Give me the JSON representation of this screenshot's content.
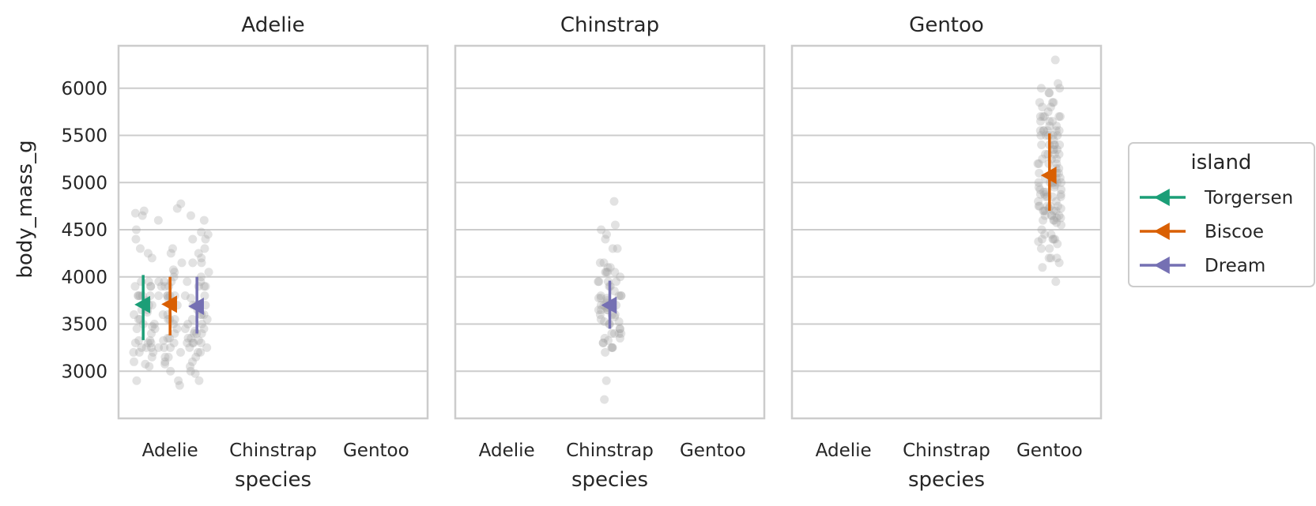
{
  "chart_data": {
    "type": "scatter",
    "ylabel": "body_mass_g",
    "xlabel": "species",
    "categories": [
      "Adelie",
      "Chinstrap",
      "Gentoo"
    ],
    "ylim": [
      2500,
      6450
    ],
    "yticks": [
      3000,
      3500,
      4000,
      4500,
      5000,
      5500,
      6000
    ],
    "grid": true,
    "legend": {
      "title": "island",
      "placement": "right",
      "entries": [
        "Torgersen",
        "Biscoe",
        "Dream"
      ]
    },
    "colors": {
      "Torgersen": "#1b9e77",
      "Biscoe": "#d95f02",
      "Dream": "#7570b3",
      "points": "#a0a0a0"
    },
    "panels": [
      {
        "title": "Adelie",
        "summary": [
          {
            "island": "Torgersen",
            "category": "Adelie",
            "mean": 3706,
            "low": 3330,
            "high": 4020
          },
          {
            "island": "Biscoe",
            "category": "Adelie",
            "mean": 3710,
            "low": 3380,
            "high": 4000
          },
          {
            "island": "Dream",
            "category": "Adelie",
            "mean": 3688,
            "low": 3400,
            "high": 4000
          }
        ],
        "points": [
          {
            "island": "Torgersen",
            "category": "Adelie",
            "values": [
              3750,
              3800,
              3250,
              3450,
              3650,
              3625,
              4675,
              3475,
              4250,
              3300,
              3700,
              3200,
              3800,
              4400,
              3700,
              3450,
              4500,
              3325,
              4200,
              3400,
              3600,
              3800,
              3950,
              3800,
              3800,
              3550,
              3200,
              3150,
              3950,
              3250,
              3900,
              3300,
              3900,
              3325,
              4300,
              3500,
              3500,
              4650,
              3050,
              2900,
              3650,
              3700,
              3900,
              3550,
              4700,
              3250,
              3300,
              3100,
              3075,
              3200
            ]
          },
          {
            "island": "Biscoe",
            "category": "Adelie",
            "values": [
              3400,
              3600,
              3800,
              3950,
              3800,
              3800,
              3550,
              3200,
              3150,
              3950,
              3250,
              3900,
              3300,
              4600,
              3100,
              3900,
              3775,
              3325,
              4725,
              3350,
              4250,
              2900,
              3700,
              3550,
              3800,
              3950,
              3900,
              3250,
              4000,
              3150,
              3550,
              4775,
              3600,
              3000,
              2850,
              4300,
              3250,
              4075,
              3500,
              3350,
              3700,
              4050,
              3075,
              3450,
              4150,
              3800
            ]
          },
          {
            "island": "Dream",
            "category": "Adelie",
            "values": [
              3250,
              3900,
              3300,
              3900,
              3325,
              4150,
              3950,
              3550,
              3300,
              4650,
              3150,
              3900,
              3100,
              4400,
              3000,
              4600,
              3425,
              2975,
              3450,
              4150,
              3500,
              4300,
              3450,
              4050,
              2900,
              3700,
              3550,
              3800,
              3350,
              3650,
              3200,
              4200,
              3600,
              3400,
              3950,
              3250,
              4475,
              3350,
              4250,
              3050,
              4000,
              3700,
              3300,
              3600,
              3300,
              3400,
              3775,
              3700,
              3500,
              3200,
              4450,
              3400,
              3700,
              3800,
              3600,
              4400
            ]
          }
        ]
      },
      {
        "title": "Chinstrap",
        "summary": [
          {
            "island": "Dream",
            "category": "Chinstrap",
            "mean": 3700,
            "low": 3450,
            "high": 3960
          }
        ],
        "points": [
          {
            "island": "Dream",
            "category": "Chinstrap",
            "values": [
              3500,
              3900,
              3650,
              3525,
              3725,
              3950,
              3250,
              3750,
              4150,
              3700,
              3800,
              3775,
              3700,
              4050,
              3575,
              4050,
              3300,
              3700,
              3450,
              4400,
              3600,
              3400,
              2900,
              3800,
              3300,
              4150,
              3400,
              3800,
              3700,
              4550,
              3200,
              4300,
              3350,
              4100,
              3600,
              3900,
              3850,
              4800,
              2700,
              4500,
              3950,
              3650,
              3550,
              3500,
              3675,
              4450,
              3400,
              4300,
              3250,
              3675,
              3325,
              3950,
              3600,
              4050,
              3350,
              3450,
              3250,
              4050,
              3800,
              3525,
              3950,
              3650,
              3650,
              4000,
              3400,
              3775,
              4100,
              3775
            ]
          }
        ]
      },
      {
        "title": "Gentoo",
        "summary": [
          {
            "island": "Biscoe",
            "category": "Gentoo",
            "mean": 5076,
            "low": 4700,
            "high": 5520
          }
        ],
        "points": [
          {
            "island": "Biscoe",
            "category": "Gentoo",
            "values": [
              4500,
              5700,
              4450,
              5700,
              5400,
              4550,
              4800,
              5200,
              4400,
              5150,
              4650,
              5550,
              4650,
              5850,
              4200,
              5850,
              4150,
              6300,
              4800,
              5350,
              5700,
              5000,
              4400,
              5050,
              5000,
              5100,
              4100,
              5650,
              4600,
              5550,
              5250,
              4700,
              5050,
              6050,
              5150,
              5400,
              4950,
              5250,
              4350,
              5350,
              3950,
              5700,
              4300,
              4750,
              5550,
              4900,
              4200,
              5400,
              5100,
              5300,
              4850,
              5300,
              4400,
              5000,
              4900,
              5050,
              4300,
              5000,
              4450,
              5550,
              4200,
              5300,
              4400,
              5650,
              4700,
              5700,
              4650,
              5800,
              4700,
              5550,
              4750,
              5000,
              5100,
              5200,
              4700,
              5800,
              4600,
              6000,
              4750,
              5950,
              4625,
              5450,
              4725,
              5350,
              4750,
              5600,
              4600,
              5300,
              4875,
              5550,
              4950,
              5400,
              4750,
              5650,
              4850,
              5200,
              4925,
              4875,
              4625,
              5250,
              4850,
              5600,
              4975,
              5500,
              4725,
              5500,
              4700,
              5500,
              4575,
              5500,
              5000,
              5950,
              4650,
              5500,
              4375,
              5850,
              4875,
              6000,
              4925,
              4850,
              5750,
              5200,
              5400
            ]
          }
        ]
      }
    ]
  }
}
